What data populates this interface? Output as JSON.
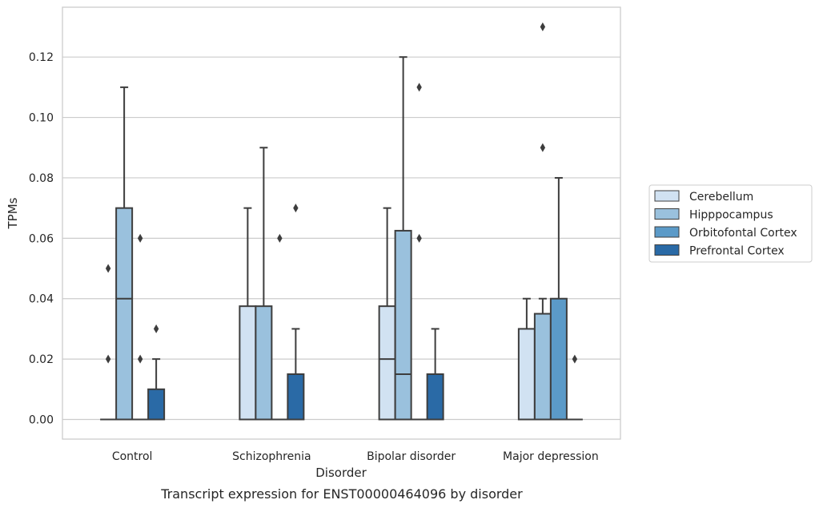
{
  "chart_data": {
    "type": "box",
    "caption": "Transcript expression for ENST00000464096 by disorder",
    "xlabel": "Disorder",
    "ylabel": "TPMs",
    "ylim": [
      -0.0065,
      0.1365
    ],
    "yticks": [
      0.0,
      0.02,
      0.04,
      0.06,
      0.08,
      0.1,
      0.12
    ],
    "ytick_labels": [
      "0.00",
      "0.02",
      "0.04",
      "0.06",
      "0.08",
      "0.10",
      "0.12"
    ],
    "grid": "horizontal",
    "legend_position": "right",
    "categories": [
      "Control",
      "Schizophrenia",
      "Bipolar disorder",
      "Major depression"
    ],
    "series": [
      {
        "name": "Cerebellum",
        "color": "#d1e2f2",
        "boxes": [
          {
            "min": 0,
            "q1": 0,
            "median": 0,
            "q3": 0,
            "max": 0,
            "outliers": [
              0.02,
              0.05
            ]
          },
          {
            "min": 0,
            "q1": 0,
            "median": 0,
            "q3": 0.0375,
            "max": 0.07,
            "outliers": []
          },
          {
            "min": 0,
            "q1": 0,
            "median": 0.02,
            "q3": 0.0375,
            "max": 0.07,
            "outliers": []
          },
          {
            "min": 0,
            "q1": 0,
            "median": 0,
            "q3": 0.03,
            "max": 0.04,
            "outliers": []
          }
        ]
      },
      {
        "name": "Hipppocampus",
        "color": "#9ac1dd",
        "boxes": [
          {
            "min": 0,
            "q1": 0,
            "median": 0.04,
            "q3": 0.07,
            "max": 0.11,
            "outliers": []
          },
          {
            "min": 0,
            "q1": 0,
            "median": 0,
            "q3": 0.0375,
            "max": 0.09,
            "outliers": []
          },
          {
            "min": 0,
            "q1": 0,
            "median": 0.015,
            "q3": 0.0625,
            "max": 0.12,
            "outliers": []
          },
          {
            "min": 0,
            "q1": 0,
            "median": 0,
            "q3": 0.035,
            "max": 0.04,
            "outliers": [
              0.09,
              0.13
            ]
          }
        ]
      },
      {
        "name": "Orbitofontal Cortex",
        "color": "#5b9ac8",
        "boxes": [
          {
            "min": 0,
            "q1": 0,
            "median": 0,
            "q3": 0,
            "max": 0,
            "outliers": [
              0.02,
              0.06
            ]
          },
          {
            "min": 0,
            "q1": 0,
            "median": 0,
            "q3": 0,
            "max": 0,
            "outliers": [
              0.06
            ]
          },
          {
            "min": 0,
            "q1": 0,
            "median": 0,
            "q3": 0,
            "max": 0,
            "outliers": [
              0.06,
              0.11
            ]
          },
          {
            "min": 0,
            "q1": 0,
            "median": 0,
            "q3": 0.04,
            "max": 0.08,
            "outliers": []
          }
        ]
      },
      {
        "name": "Prefrontal Cortex",
        "color": "#2a6aa6",
        "boxes": [
          {
            "min": 0,
            "q1": 0,
            "median": 0,
            "q3": 0.01,
            "max": 0.02,
            "outliers": [
              0.03
            ]
          },
          {
            "min": 0,
            "q1": 0,
            "median": 0,
            "q3": 0.015,
            "max": 0.03,
            "outliers": [
              0.07
            ]
          },
          {
            "min": 0,
            "q1": 0,
            "median": 0,
            "q3": 0.015,
            "max": 0.03,
            "outliers": []
          },
          {
            "min": 0,
            "q1": 0,
            "median": 0,
            "q3": 0,
            "max": 0,
            "outliers": [
              0.02
            ]
          }
        ]
      }
    ]
  }
}
